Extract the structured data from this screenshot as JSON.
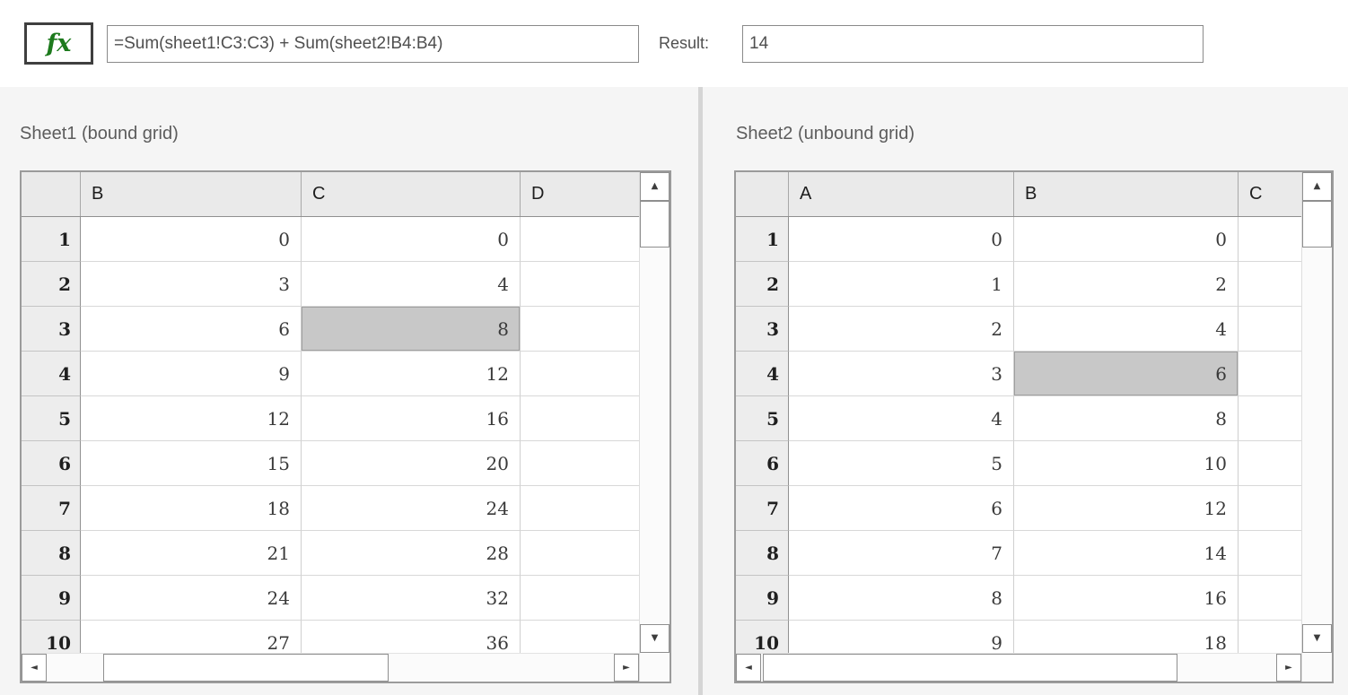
{
  "formula_bar": {
    "fx_label": "fx",
    "formula": "=Sum(sheet1!C3:C3) + Sum(sheet2!B4:B4)",
    "result_label": "Result:",
    "result_value": "14"
  },
  "icons": {
    "scroll_up": "▲",
    "scroll_down": "▼",
    "scroll_left": "◄",
    "scroll_right": "►"
  },
  "colors": {
    "selected_cell": "#c8c8c8",
    "fx_green": "#1d7a1d",
    "panel_background": "#f5f5f5"
  },
  "grids": [
    {
      "title": "Sheet1 (bound grid)",
      "columns": [
        "B",
        "C",
        "D"
      ],
      "rows": [
        [
          "1",
          "0",
          "0",
          ""
        ],
        [
          "2",
          "3",
          "4",
          ""
        ],
        [
          "3",
          "6",
          "8",
          ""
        ],
        [
          "4",
          "9",
          "12",
          ""
        ],
        [
          "5",
          "12",
          "16",
          ""
        ],
        [
          "6",
          "15",
          "20",
          ""
        ],
        [
          "7",
          "18",
          "24",
          ""
        ],
        [
          "8",
          "21",
          "28",
          ""
        ],
        [
          "9",
          "24",
          "32",
          ""
        ],
        [
          "10",
          "27",
          "36",
          ""
        ]
      ],
      "selected_cell": {
        "row": 3,
        "column": "C"
      }
    },
    {
      "title": "Sheet2 (unbound grid)",
      "columns": [
        "A",
        "B",
        "C"
      ],
      "rows": [
        [
          "1",
          "0",
          "0",
          ""
        ],
        [
          "2",
          "1",
          "2",
          ""
        ],
        [
          "3",
          "2",
          "4",
          ""
        ],
        [
          "4",
          "3",
          "6",
          ""
        ],
        [
          "5",
          "4",
          "8",
          ""
        ],
        [
          "6",
          "5",
          "10",
          ""
        ],
        [
          "7",
          "6",
          "12",
          ""
        ],
        [
          "8",
          "7",
          "14",
          ""
        ],
        [
          "9",
          "8",
          "16",
          ""
        ],
        [
          "10",
          "9",
          "18",
          ""
        ]
      ],
      "selected_cell": {
        "row": 4,
        "column": "B"
      }
    }
  ]
}
